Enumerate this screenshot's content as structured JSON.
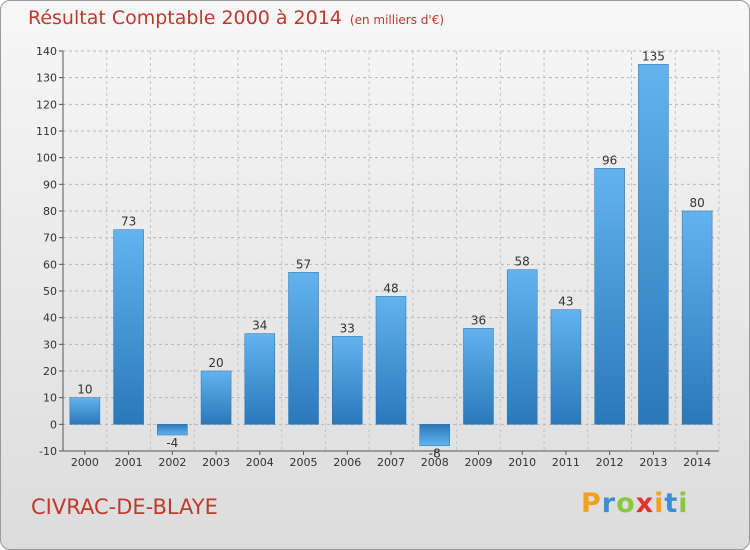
{
  "title": "Résultat Comptable 2000 à 2014",
  "subtitle": "(en milliers d'€)",
  "location": "CIVRAC-DE-BLAYE",
  "logo": {
    "letters": [
      "P",
      "r",
      "o",
      "x",
      "i",
      "t",
      "i"
    ],
    "colors": [
      "#f0a21a",
      "#3a8fd6",
      "#8cc63f",
      "#e4322b",
      "#f0a21a",
      "#3a8fd6",
      "#8cc63f"
    ]
  },
  "chart_data": {
    "type": "bar",
    "categories": [
      "2000",
      "2001",
      "2002",
      "2003",
      "2004",
      "2005",
      "2006",
      "2007",
      "2008",
      "2009",
      "2010",
      "2011",
      "2012",
      "2013",
      "2014"
    ],
    "values": [
      10,
      73,
      -4,
      20,
      34,
      57,
      33,
      48,
      -8,
      36,
      58,
      43,
      96,
      135,
      80
    ],
    "title": "Résultat Comptable 2000 à 2014",
    "xlabel": "",
    "ylabel": "",
    "ylim": [
      -10,
      140
    ],
    "yticks": [
      -10,
      0,
      10,
      20,
      30,
      40,
      50,
      60,
      70,
      80,
      90,
      100,
      110,
      120,
      130,
      140
    ],
    "grid": true,
    "bar_color": "#4a9ee0"
  }
}
